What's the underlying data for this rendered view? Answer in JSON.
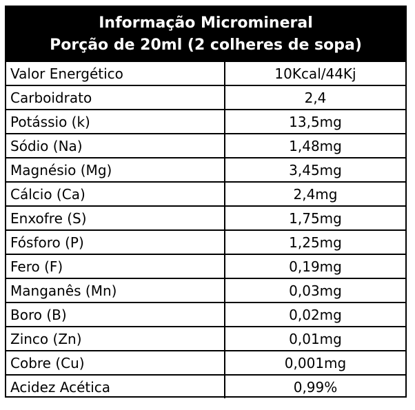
{
  "table": {
    "title": "Informação Micromineral",
    "subtitle": "Porção de 20ml (2 colheres de sopa)",
    "rows": [
      {
        "name": "Valor Energético",
        "value": "10Kcal/44Kj"
      },
      {
        "name": "Carboidrato",
        "value": "2,4"
      },
      {
        "name": "Potássio (k)",
        "value": "13,5mg"
      },
      {
        "name": "Sódio (Na)",
        "value": "1,48mg"
      },
      {
        "name": "Magnésio (Mg)",
        "value": "3,45mg"
      },
      {
        "name": "Cálcio (Ca)",
        "value": "2,4mg"
      },
      {
        "name": "Enxofre (S)",
        "value": "1,75mg"
      },
      {
        "name": "Fósforo (P)",
        "value": "1,25mg"
      },
      {
        "name": "Fero (F)",
        "value": "0,19mg"
      },
      {
        "name": "Manganês (Mn)",
        "value": "0,03mg"
      },
      {
        "name": "Boro (B)",
        "value": "0,02mg"
      },
      {
        "name": "Zinco (Zn)",
        "value": "0,01mg"
      },
      {
        "name": "Cobre (Cu)",
        "value": "0,001mg"
      },
      {
        "name": "Acidez Acética",
        "value": "0,99%"
      }
    ]
  }
}
